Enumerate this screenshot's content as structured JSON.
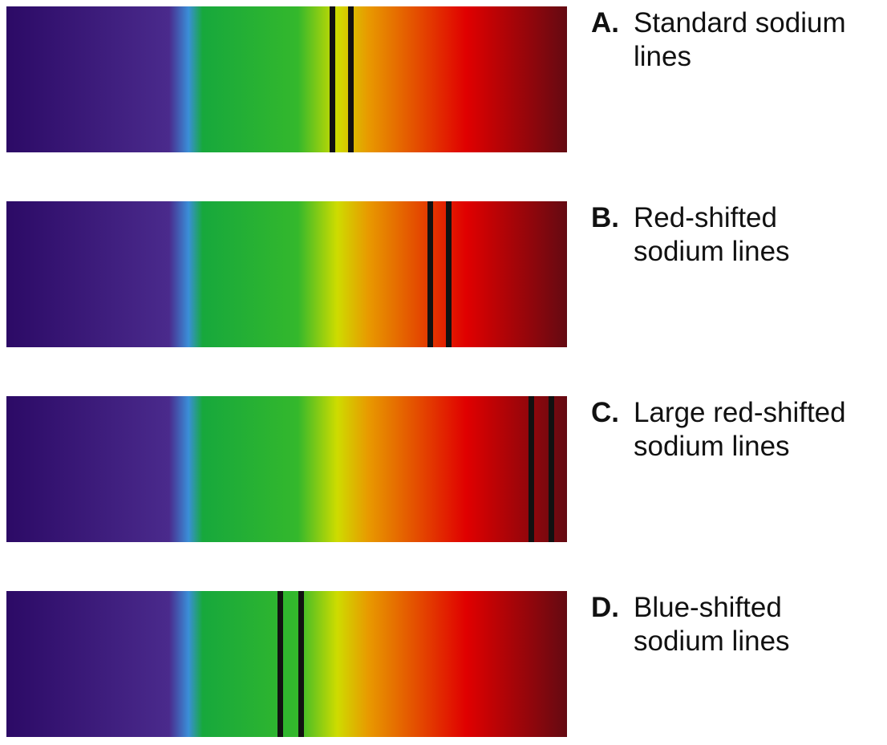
{
  "panels": [
    {
      "letter": "A.",
      "lines": [
        "Standard sodium",
        "lines"
      ]
    },
    {
      "letter": "B.",
      "lines": [
        "Red-shifted",
        "sodium lines"
      ]
    },
    {
      "letter": "C.",
      "lines": [
        "Large red-shifted",
        "sodium lines"
      ]
    },
    {
      "letter": "D.",
      "lines": [
        "Blue-shifted",
        "sodium lines"
      ]
    }
  ]
}
